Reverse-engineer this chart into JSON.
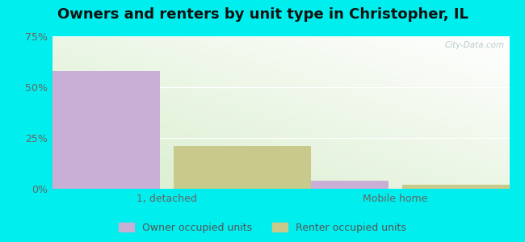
{
  "title": "Owners and renters by unit type in Christopher, IL",
  "categories": [
    "1, detached",
    "Mobile home"
  ],
  "series": [
    {
      "name": "Owner occupied units",
      "values": [
        58.0,
        4.0
      ],
      "color": "#c9aed6"
    },
    {
      "name": "Renter occupied units",
      "values": [
        21.0,
        2.0
      ],
      "color": "#c8c98a"
    }
  ],
  "ylim": [
    0,
    75
  ],
  "yticks": [
    0,
    25,
    50,
    75
  ],
  "ytick_labels": [
    "0%",
    "25%",
    "50%",
    "75%"
  ],
  "background_color": "#00eeee",
  "bar_width": 0.3,
  "title_fontsize": 13,
  "watermark": "City-Data.com"
}
